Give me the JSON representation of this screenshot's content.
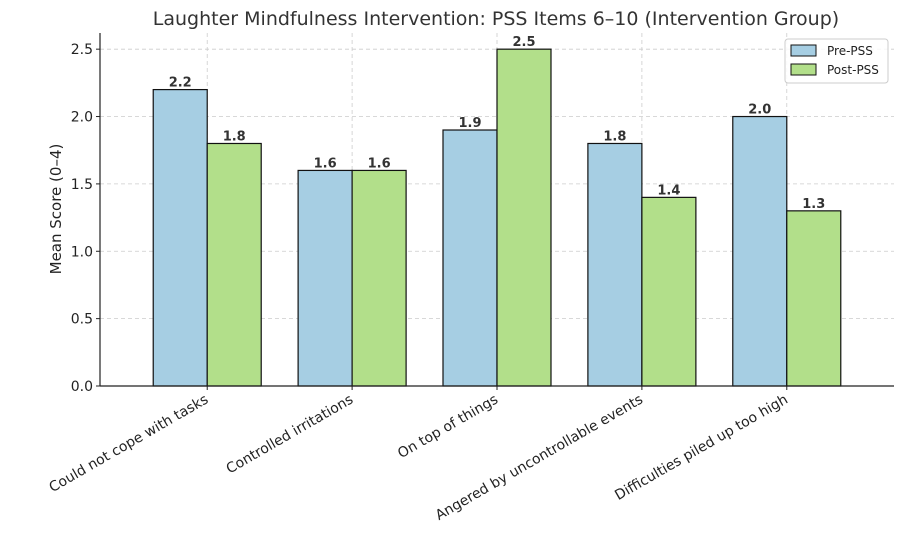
{
  "chart_data": {
    "type": "bar",
    "title": "Laughter Mindfulness Intervention: PSS Items 6–10 (Intervention Group)",
    "xlabel": "",
    "ylabel": "Mean Score (0–4)",
    "ylim": [
      0,
      2.62
    ],
    "yticks": [
      "0.0",
      "0.5",
      "1.0",
      "1.5",
      "2.0",
      "2.5"
    ],
    "grid": true,
    "legend_position": "top-right",
    "categories": [
      "Could not cope with tasks",
      "Controlled irritations",
      "On top of things",
      "Angered by uncontrollable events",
      "Difficulties piled up too high"
    ],
    "series": [
      {
        "name": "Pre-PSS",
        "color": "#a6cee3",
        "values": [
          2.2,
          1.6,
          1.9,
          1.8,
          2.0
        ],
        "labels": [
          "2.2",
          "1.6",
          "1.9",
          "1.8",
          "2.0"
        ]
      },
      {
        "name": "Post-PSS",
        "color": "#b2df8a",
        "values": [
          1.8,
          1.6,
          2.5,
          1.4,
          1.3
        ],
        "labels": [
          "1.8",
          "1.6",
          "2.5",
          "1.4",
          "1.3"
        ]
      }
    ]
  }
}
